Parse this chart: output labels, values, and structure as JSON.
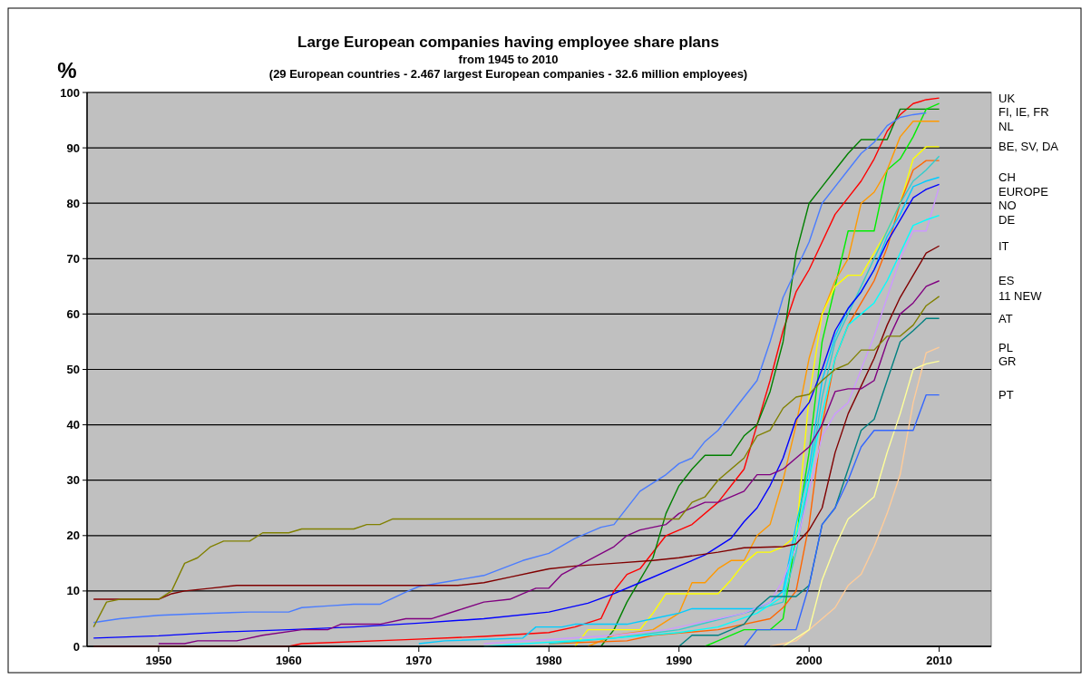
{
  "chart_data": {
    "type": "line",
    "title": "Large European companies having employee share plans",
    "subtitle": "from 1945 to 2010",
    "annotations": [
      "(29 European countries - 2.467 largest European companies - 32.6 million employees)"
    ],
    "ylabel": "%",
    "xlim": [
      1944.5,
      2014
    ],
    "xticks": [
      1950,
      1960,
      1970,
      1980,
      1990,
      2000,
      2010
    ],
    "ylim": [
      0,
      100
    ],
    "yticks": [
      0,
      10,
      20,
      30,
      40,
      50,
      60,
      70,
      80,
      90,
      100
    ],
    "grid": "y",
    "legend": false,
    "marker": "none",
    "line_style": "solid",
    "series": [
      {
        "name": "UK",
        "color": "#ff0000",
        "x": [
          1945,
          1960,
          1961,
          1969,
          1975,
          1980,
          1982,
          1984,
          1985,
          1986,
          1987,
          1989,
          1991,
          1993,
          1995,
          1996,
          1997,
          1998,
          1999,
          2000,
          2001,
          2002,
          2003,
          2004,
          2005,
          2006,
          2007,
          2008,
          2009,
          2010
        ],
        "values": [
          0,
          0,
          0.5,
          1.2,
          1.8,
          2.5,
          3.5,
          5,
          10,
          13,
          14,
          20,
          22,
          26,
          32,
          40,
          48,
          57,
          64,
          68,
          73,
          78,
          81,
          84,
          88,
          93,
          96,
          98,
          98.7,
          99
        ]
      },
      {
        "name": "FI, IE, FR",
        "color": "#008000",
        "x": [
          1984,
          1985,
          1986,
          1987,
          1988,
          1989,
          1990,
          1991,
          1992,
          1994,
          1995,
          1996,
          1997,
          1998,
          1999,
          2000,
          2001,
          2002,
          2003,
          2004,
          2005,
          2006,
          2007,
          2010
        ],
        "values": [
          0,
          3,
          8,
          12,
          16,
          24,
          29,
          32,
          34.5,
          34.5,
          38,
          40,
          46,
          55,
          71,
          80,
          83,
          86,
          89,
          91.5,
          91.5,
          91.5,
          97,
          97
        ]
      },
      {
        "color": "#00ee00",
        "x": [
          1992,
          1993,
          1995,
          1997,
          1998,
          1999,
          2000,
          2001,
          2002,
          2003,
          2004,
          2005,
          2006,
          2007,
          2008,
          2009,
          2010
        ],
        "values": [
          0,
          1,
          3,
          3,
          5,
          20,
          35,
          55,
          65,
          75,
          75,
          75,
          86,
          88,
          92,
          97,
          98
        ]
      },
      {
        "color": "#4a7cff",
        "x": [
          1945,
          1947,
          1950,
          1953,
          1957,
          1960,
          1961,
          1963,
          1965,
          1967,
          1969,
          1970,
          1975,
          1978,
          1980,
          1982,
          1984,
          1985,
          1987,
          1989,
          1990,
          1991,
          1992,
          1993,
          1995,
          1996,
          1997,
          1998,
          1999,
          2000,
          2001,
          2002,
          2003,
          2004,
          2005,
          2006,
          2007,
          2008,
          2009
        ],
        "values": [
          4.3,
          5,
          5.6,
          5.9,
          6.2,
          6.2,
          7,
          7.3,
          7.6,
          7.6,
          9.8,
          10.8,
          12.8,
          15.5,
          16.8,
          19.5,
          21.5,
          22,
          28,
          31,
          33,
          34,
          37,
          39,
          45,
          48,
          55,
          63,
          68,
          73,
          80,
          83,
          86,
          89,
          91,
          94,
          95.5,
          96,
          96.3
        ]
      },
      {
        "name": "NL",
        "color": "#ff9900",
        "x": [
          1983,
          1985,
          1988,
          1990,
          1991,
          1992,
          1993,
          1994,
          1995,
          1996,
          1997,
          1998,
          1999,
          2000,
          2001,
          2002,
          2003,
          2004,
          2005,
          2006,
          2007,
          2008,
          2010
        ],
        "values": [
          0,
          2,
          3,
          6,
          11.5,
          11.5,
          14,
          15.5,
          15.5,
          20,
          22,
          30,
          40,
          52,
          60,
          66,
          70,
          80,
          82,
          86,
          92,
          94.8,
          94.8
        ]
      },
      {
        "name": "BE, SV, DA",
        "color": "#ffff00",
        "x": [
          1982,
          1983,
          1987,
          1988,
          1989,
          1993,
          1994,
          1995,
          1996,
          1997,
          1998,
          1999,
          2000,
          2001,
          2002,
          2003,
          2004,
          2005,
          2006,
          2007,
          2008,
          2009,
          2010
        ],
        "values": [
          0,
          3,
          3,
          6,
          9.5,
          9.5,
          12,
          15,
          17,
          17,
          18,
          20,
          45,
          60,
          65,
          67,
          67,
          71,
          75,
          80,
          88,
          90.2,
          90.2
        ]
      },
      {
        "color": "#ff6600",
        "x": [
          1980,
          1986,
          1988,
          1993,
          1995,
          1997,
          1998,
          1999,
          2000,
          2001,
          2002,
          2003,
          2004,
          2005,
          2006,
          2007,
          2008,
          2009,
          2010
        ],
        "values": [
          0.5,
          1,
          2,
          3,
          4,
          5,
          7,
          10,
          22,
          40,
          52,
          58,
          62,
          66,
          72,
          80,
          86,
          87.7,
          87.7
        ]
      },
      {
        "color": "#33cccc",
        "x": [
          1980,
          1985,
          1990,
          1995,
          1998,
          1999,
          2000,
          2001,
          2002,
          2003,
          2004,
          2005,
          2006,
          2007,
          2008,
          2009,
          2010
        ],
        "values": [
          0.5,
          1.5,
          3,
          6,
          8,
          17,
          30,
          45,
          55,
          60,
          65,
          70,
          75,
          80,
          84,
          86,
          88.5
        ]
      },
      {
        "name": "CH",
        "color": "#00ccff",
        "x": [
          1970,
          1972,
          1978,
          1979,
          1981,
          1982,
          1986,
          1988,
          1990,
          1991,
          1996,
          1997,
          1998,
          1999,
          2000,
          2001,
          2002,
          2003,
          2004,
          2005,
          2006,
          2007,
          2008,
          2009,
          2010
        ],
        "values": [
          0.5,
          1,
          1.5,
          3.5,
          3.5,
          4,
          4,
          5,
          6,
          6.8,
          6.8,
          8,
          10,
          22,
          32,
          48,
          56,
          61,
          64,
          68,
          74,
          78,
          83,
          84,
          84.7
        ]
      },
      {
        "name": "EUROPE",
        "color": "#0000ff",
        "x": [
          1945,
          1950,
          1955,
          1960,
          1965,
          1970,
          1975,
          1980,
          1983,
          1985,
          1987,
          1990,
          1992,
          1994,
          1995,
          1996,
          1997,
          1998,
          1999,
          2000,
          2001,
          2002,
          2003,
          2004,
          2005,
          2006,
          2007,
          2008,
          2009,
          2010
        ],
        "values": [
          1.5,
          1.9,
          2.6,
          3,
          3.5,
          4.2,
          5,
          6.2,
          7.8,
          9.5,
          11.5,
          14.5,
          16.5,
          19.5,
          22.5,
          25,
          29,
          34,
          41,
          44,
          50,
          57,
          61,
          64,
          68,
          73,
          77,
          81,
          82.5,
          83.4
        ]
      },
      {
        "name": "NO",
        "color": "#cc99ff",
        "x": [
          1975,
          1985,
          1989,
          1993,
          1995,
          1997,
          1998,
          1999,
          2000,
          2001,
          2002,
          2003,
          2004,
          2005,
          2006,
          2007,
          2008,
          2009,
          2010
        ],
        "values": [
          0.5,
          2,
          3,
          5,
          6,
          8,
          12,
          18,
          28,
          38,
          42,
          44,
          50,
          56,
          63,
          70,
          75,
          75,
          83
        ]
      },
      {
        "name": "DE",
        "color": "#00ffff",
        "x": [
          1975,
          1985,
          1990,
          1993,
          1996,
          1998,
          1999,
          2000,
          2001,
          2002,
          2003,
          2004,
          2005,
          2006,
          2007,
          2008,
          2009,
          2010
        ],
        "values": [
          0,
          1.5,
          2.5,
          3.5,
          6,
          9,
          20,
          30,
          42,
          52,
          58,
          60,
          62,
          66,
          71,
          76,
          77,
          77.8
        ]
      },
      {
        "name": "IT",
        "color": "#800000",
        "x": [
          1945,
          1950,
          1951,
          1952,
          1954,
          1956,
          1973,
          1975,
          1977,
          1979,
          1980,
          1982,
          1985,
          1988,
          1990,
          1993,
          1995,
          1998,
          1999,
          2000,
          2001,
          2002,
          2003,
          2004,
          2005,
          2006,
          2007,
          2008,
          2009,
          2010
        ],
        "values": [
          8.5,
          8.5,
          9.5,
          10,
          10.5,
          11,
          11,
          11.5,
          12.5,
          13.5,
          14,
          14.5,
          15,
          15.5,
          16,
          17,
          17.8,
          18,
          18.5,
          21,
          25,
          35,
          42,
          47,
          52,
          58,
          63,
          67,
          71,
          72.3
        ]
      },
      {
        "name": "ES",
        "color": "#800080",
        "x": [
          1950,
          1952,
          1953,
          1956,
          1958,
          1961,
          1963,
          1964,
          1967,
          1969,
          1971,
          1973,
          1975,
          1977,
          1978,
          1979,
          1980,
          1981,
          1983,
          1985,
          1986,
          1987,
          1989,
          1990,
          1992,
          1993,
          1995,
          1996,
          1997,
          1998,
          1999,
          2000,
          2001,
          2002,
          2003,
          2004,
          2005,
          2006,
          2007,
          2008,
          2009,
          2010
        ],
        "values": [
          0.5,
          0.5,
          1,
          1,
          2,
          3,
          3,
          4,
          4,
          5,
          5,
          6.5,
          8,
          8.5,
          9.5,
          10.5,
          10.5,
          13,
          15.5,
          18,
          20,
          21,
          22,
          24,
          26,
          26,
          28,
          31,
          31,
          32,
          34,
          36,
          40,
          46,
          46.5,
          46.5,
          48,
          55,
          60,
          62,
          65,
          66
        ]
      },
      {
        "name": "11 NEW",
        "color": "#808000",
        "x": [
          1945,
          1946,
          1947,
          1950,
          1951,
          1952,
          1953,
          1954,
          1955,
          1957,
          1958,
          1960,
          1961,
          1965,
          1966,
          1967,
          1968,
          1990,
          1991,
          1992,
          1993,
          1995,
          1996,
          1997,
          1998,
          1999,
          2000,
          2001,
          2002,
          2003,
          2004,
          2005,
          2006,
          2007,
          2008,
          2009,
          2010
        ],
        "values": [
          3.5,
          8,
          8.5,
          8.5,
          10,
          15,
          16,
          18,
          19,
          19,
          20.5,
          20.5,
          21.2,
          21.2,
          22,
          22,
          23,
          23,
          26,
          27,
          30,
          34,
          38,
          39,
          43,
          45,
          45.5,
          48,
          50,
          51,
          53.5,
          53.5,
          56,
          56,
          58,
          61.5,
          63.2
        ]
      },
      {
        "name": "AT",
        "color": "#008080",
        "x": [
          1990,
          1991,
          1993,
          1995,
          1996,
          1997,
          1999,
          2000,
          2001,
          2002,
          2003,
          2004,
          2005,
          2006,
          2007,
          2008,
          2009,
          2010
        ],
        "values": [
          0,
          2,
          2,
          4,
          7,
          9,
          9,
          11,
          22,
          25,
          32,
          39,
          41,
          48,
          55,
          57,
          59.2,
          59.2
        ]
      },
      {
        "name": "PL",
        "color": "#ffcc99",
        "x": [
          1997,
          1999,
          2000,
          2001,
          2002,
          2003,
          2004,
          2005,
          2006,
          2007,
          2008,
          2009,
          2010
        ],
        "values": [
          0,
          1,
          3,
          5,
          7,
          11,
          13,
          18,
          24,
          31,
          44,
          53,
          54
        ]
      },
      {
        "name": "GR",
        "color": "#ffff99",
        "x": [
          1998,
          2000,
          2001,
          2002,
          2003,
          2004,
          2005,
          2006,
          2007,
          2008,
          2009,
          2010
        ],
        "values": [
          0,
          3,
          12,
          18,
          23,
          25,
          27,
          35,
          42,
          50,
          51,
          51.5
        ]
      },
      {
        "name": "PT",
        "color": "#3366ff",
        "x": [
          1995,
          1996,
          1999,
          2000,
          2001,
          2002,
          2003,
          2004,
          2005,
          2008,
          2009,
          2010
        ],
        "values": [
          0,
          3,
          3,
          11,
          22,
          25,
          30,
          36,
          39,
          39,
          45.4,
          45.4
        ]
      }
    ]
  }
}
